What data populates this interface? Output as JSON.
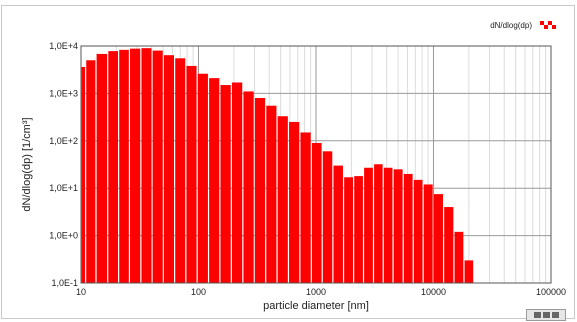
{
  "chart_data": {
    "type": "bar",
    "xscale": "log",
    "yscale": "log",
    "xlim": [
      10,
      100000
    ],
    "ylim": [
      0.1,
      10000
    ],
    "xlabel": "particle diameter [nm]",
    "ylabel": "dN/dlog(dp) [1/cm³]",
    "x_ticks": [
      "10",
      "100",
      "1000",
      "10000",
      "100000"
    ],
    "y_ticks": [
      "1,0E-1",
      "1,0E+0",
      "1,0E+1",
      "1,0E+2",
      "1,0E+3",
      "1,0E+4"
    ],
    "grid": true,
    "legend_position": "top-right",
    "bar_color": "#ff0000",
    "series": [
      {
        "name": "dN/dlog(dp)",
        "x": [
          10,
          12,
          15,
          19,
          23,
          29,
          36,
          45,
          56,
          70,
          87,
          109,
          136,
          170,
          213,
          267,
          334,
          417,
          521,
          652,
          815,
          1020,
          1250,
          1550,
          1900,
          2300,
          2800,
          3400,
          4100,
          5000,
          6100,
          7400,
          9000,
          11000,
          13500,
          16500,
          20000
        ],
        "values": [
          3600,
          5000,
          6800,
          7800,
          8300,
          8800,
          9000,
          8000,
          6400,
          5500,
          3800,
          2600,
          2100,
          1500,
          1700,
          1100,
          800,
          550,
          330,
          250,
          150,
          90,
          60,
          30,
          17,
          18,
          27,
          32,
          27,
          25,
          20,
          15,
          12,
          7.5,
          4,
          1.2,
          0.3
        ]
      }
    ]
  },
  "ui": {
    "export_icon": "grid-icon"
  }
}
